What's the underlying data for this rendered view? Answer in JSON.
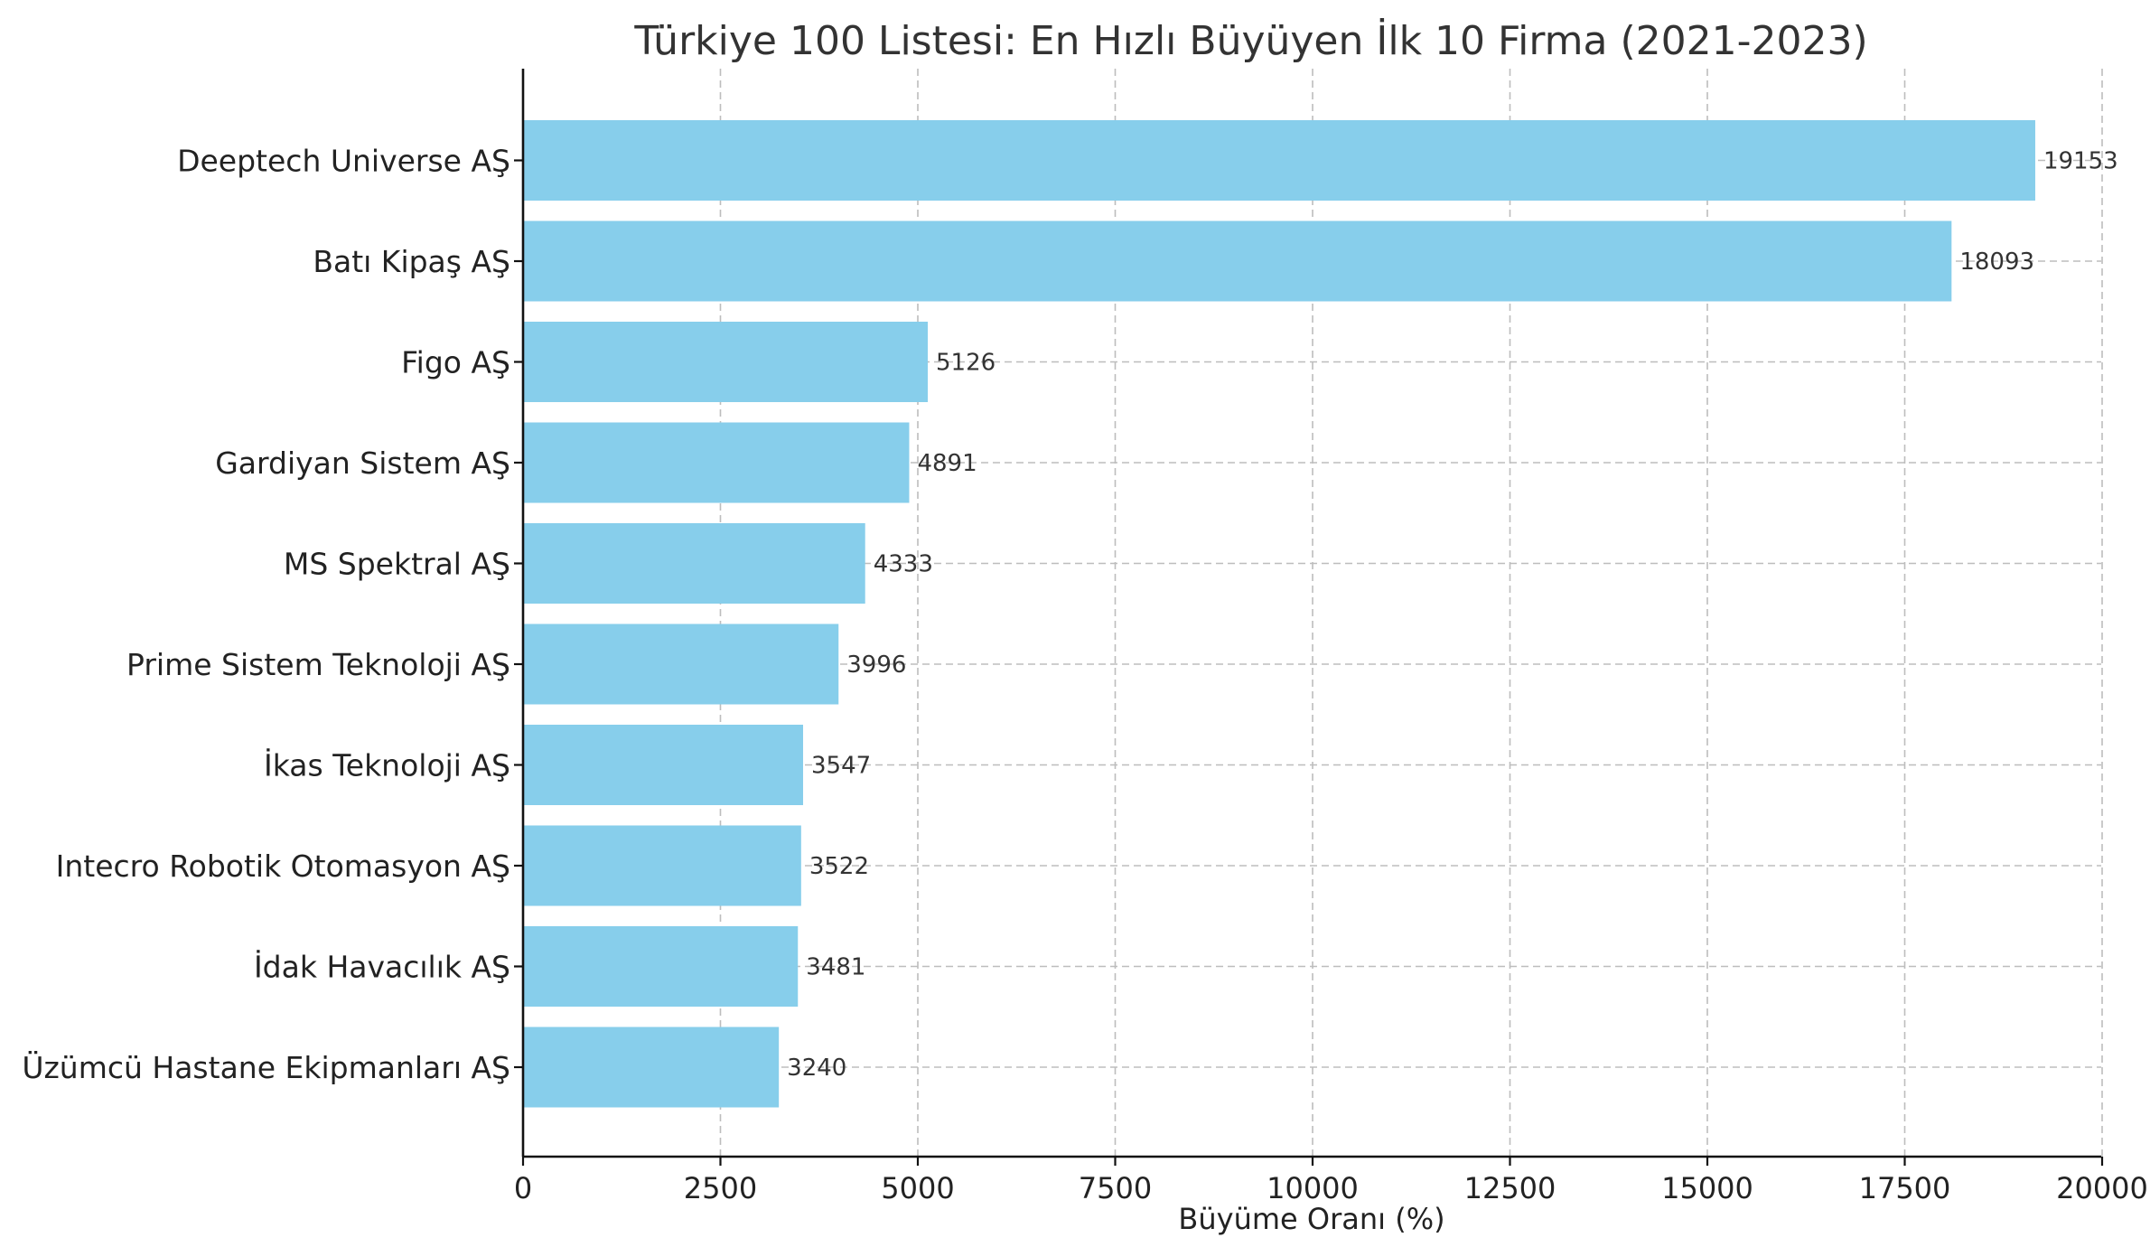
{
  "chart_data": {
    "type": "bar",
    "orientation": "horizontal",
    "title": "Türkiye 100 Listesi: En Hızlı Büyüyen İlk 10 Firma (2021-2023)",
    "xlabel": "Büyüme Oranı (%)",
    "ylabel": "",
    "categories": [
      "Deeptech Universe AŞ",
      "Batı Kipaş AŞ",
      "Figo AŞ",
      "Gardiyan Sistem AŞ",
      "MS Spektral AŞ",
      "Prime Sistem Teknoloji AŞ",
      "İkas Teknoloji AŞ",
      "Intecro Robotik Otomasyon AŞ",
      "İdak Havacılık AŞ",
      "Üzümcü Hastane Ekipmanları AŞ"
    ],
    "values": [
      19153,
      18093,
      5126,
      4891,
      4333,
      3996,
      3547,
      3522,
      3481,
      3240
    ],
    "value_labels": [
      "19153",
      "18093",
      "5126",
      "4891",
      "4333",
      "3996",
      "3547",
      "3522",
      "3481",
      "3240"
    ],
    "xlim": [
      0,
      20000
    ],
    "xticks": [
      0,
      2500,
      5000,
      7500,
      10000,
      12500,
      15000,
      17500,
      20000
    ],
    "xtick_labels": [
      "0",
      "2500",
      "5000",
      "7500",
      "10000",
      "12500",
      "15000",
      "17500",
      "20000"
    ],
    "grid": true,
    "bar_color": "#87ceeb",
    "axis_color": "#111111",
    "grid_color": "#bdbdbd"
  }
}
